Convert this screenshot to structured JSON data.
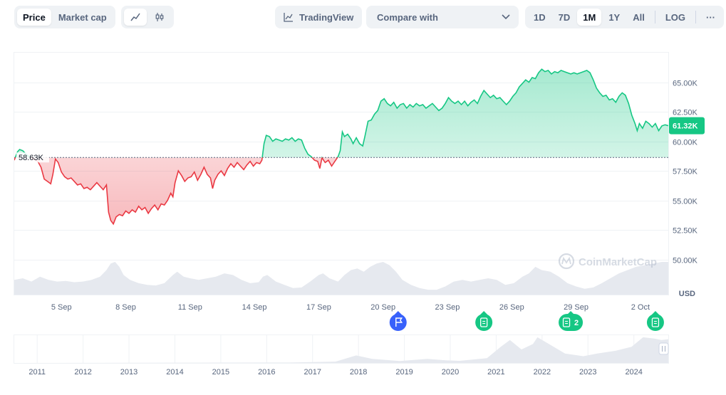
{
  "toolbar": {
    "view_tabs": [
      {
        "label": "Price",
        "active": true
      },
      {
        "label": "Market cap",
        "active": false
      }
    ],
    "chart_modes": [
      {
        "icon": "line-chart-icon",
        "active": true
      },
      {
        "icon": "candlestick-icon",
        "active": false
      }
    ],
    "tradingview_label": "TradingView",
    "compare_label": "Compare with",
    "ranges": [
      {
        "label": "1D",
        "active": false
      },
      {
        "label": "7D",
        "active": false
      },
      {
        "label": "1M",
        "active": true
      },
      {
        "label": "1Y",
        "active": false
      },
      {
        "label": "All",
        "active": false
      }
    ],
    "log_label": "LOG",
    "more_label": "···"
  },
  "colors": {
    "up": "#16c784",
    "down": "#ea3943",
    "muted": "#58667e",
    "grid": "#eff2f5"
  },
  "watermark": "CoinMarketCap",
  "chart_data": {
    "type": "area",
    "ylim": [
      47500,
      67500
    ],
    "yticks": [
      {
        "value": 50000,
        "label": "50.00K"
      },
      {
        "value": 52500,
        "label": "52.50K"
      },
      {
        "value": 55000,
        "label": "55.00K"
      },
      {
        "value": 57500,
        "label": "57.50K"
      },
      {
        "value": 60000,
        "label": "60.00K"
      },
      {
        "value": 62500,
        "label": "62.50K"
      },
      {
        "value": 65000,
        "label": "65.00K"
      }
    ],
    "xlim": [
      2.8,
      33.3
    ],
    "xticks": [
      {
        "value": 5,
        "label": "5 Sep"
      },
      {
        "value": 8,
        "label": "8 Sep"
      },
      {
        "value": 11,
        "label": "11 Sep"
      },
      {
        "value": 14,
        "label": "14 Sep"
      },
      {
        "value": 17,
        "label": "17 Sep"
      },
      {
        "value": 20,
        "label": "20 Sep"
      },
      {
        "value": 23,
        "label": "23 Sep"
      },
      {
        "value": 26,
        "label": "26 Sep"
      },
      {
        "value": 29,
        "label": "29 Sep"
      },
      {
        "value": 32,
        "label": "2 Oct"
      }
    ],
    "baseline": {
      "value": 58630,
      "label": "58.63K"
    },
    "current": {
      "value": 61320,
      "label": "61.32K"
    },
    "unit_label": "USD",
    "price_series": [
      [
        2.8,
        58400
      ],
      [
        2.95,
        59100
      ],
      [
        3.05,
        59300
      ],
      [
        3.2,
        59200
      ],
      [
        3.35,
        58900
      ],
      [
        3.5,
        58700
      ],
      [
        3.7,
        58500
      ],
      [
        3.9,
        58300
      ],
      [
        4.05,
        57800
      ],
      [
        4.2,
        56800
      ],
      [
        4.35,
        56600
      ],
      [
        4.5,
        56400
      ],
      [
        4.6,
        57200
      ],
      [
        4.72,
        58500
      ],
      [
        4.85,
        58200
      ],
      [
        5.0,
        57400
      ],
      [
        5.15,
        57000
      ],
      [
        5.3,
        56800
      ],
      [
        5.45,
        56900
      ],
      [
        5.6,
        56600
      ],
      [
        5.75,
        56300
      ],
      [
        5.9,
        56400
      ],
      [
        6.05,
        56000
      ],
      [
        6.2,
        56100
      ],
      [
        6.35,
        55900
      ],
      [
        6.5,
        56200
      ],
      [
        6.65,
        56500
      ],
      [
        6.8,
        56200
      ],
      [
        6.95,
        55900
      ],
      [
        7.1,
        56300
      ],
      [
        7.2,
        54000
      ],
      [
        7.3,
        53300
      ],
      [
        7.42,
        53000
      ],
      [
        7.55,
        53600
      ],
      [
        7.7,
        53800
      ],
      [
        7.85,
        53700
      ],
      [
        8.0,
        54100
      ],
      [
        8.15,
        53900
      ],
      [
        8.3,
        54200
      ],
      [
        8.45,
        54000
      ],
      [
        8.6,
        54500
      ],
      [
        8.75,
        54200
      ],
      [
        8.9,
        54400
      ],
      [
        9.05,
        53900
      ],
      [
        9.2,
        54300
      ],
      [
        9.35,
        54600
      ],
      [
        9.5,
        54200
      ],
      [
        9.65,
        54700
      ],
      [
        9.8,
        54600
      ],
      [
        9.95,
        55000
      ],
      [
        10.1,
        55600
      ],
      [
        10.2,
        55300
      ],
      [
        10.3,
        56500
      ],
      [
        10.45,
        57500
      ],
      [
        10.6,
        57100
      ],
      [
        10.75,
        56600
      ],
      [
        10.9,
        56900
      ],
      [
        11.05,
        57000
      ],
      [
        11.2,
        57400
      ],
      [
        11.35,
        56700
      ],
      [
        11.5,
        57200
      ],
      [
        11.65,
        57800
      ],
      [
        11.8,
        57200
      ],
      [
        11.95,
        56900
      ],
      [
        12.05,
        56000
      ],
      [
        12.15,
        56700
      ],
      [
        12.3,
        57200
      ],
      [
        12.45,
        57500
      ],
      [
        12.6,
        57100
      ],
      [
        12.75,
        57700
      ],
      [
        12.9,
        58100
      ],
      [
        13.05,
        57800
      ],
      [
        13.2,
        58200
      ],
      [
        13.35,
        57900
      ],
      [
        13.5,
        57600
      ],
      [
        13.65,
        58000
      ],
      [
        13.8,
        58300
      ],
      [
        13.95,
        57900
      ],
      [
        14.1,
        58200
      ],
      [
        14.25,
        58100
      ],
      [
        14.35,
        58400
      ],
      [
        14.45,
        59800
      ],
      [
        14.55,
        60500
      ],
      [
        14.7,
        60400
      ],
      [
        14.85,
        60000
      ],
      [
        15.0,
        60200
      ],
      [
        15.15,
        60100
      ],
      [
        15.3,
        60000
      ],
      [
        15.45,
        60200
      ],
      [
        15.6,
        60100
      ],
      [
        15.75,
        60300
      ],
      [
        15.9,
        60000
      ],
      [
        16.05,
        60200
      ],
      [
        16.2,
        60100
      ],
      [
        16.35,
        59400
      ],
      [
        16.5,
        58900
      ],
      [
        16.65,
        58700
      ],
      [
        16.8,
        58400
      ],
      [
        16.95,
        58300
      ],
      [
        17.05,
        57700
      ],
      [
        17.15,
        58600
      ],
      [
        17.3,
        58200
      ],
      [
        17.45,
        58400
      ],
      [
        17.6,
        57900
      ],
      [
        17.75,
        58300
      ],
      [
        17.9,
        58700
      ],
      [
        18.0,
        59200
      ],
      [
        18.1,
        60800
      ],
      [
        18.2,
        60400
      ],
      [
        18.35,
        60600
      ],
      [
        18.5,
        60200
      ],
      [
        18.6,
        59800
      ],
      [
        18.75,
        60300
      ],
      [
        18.9,
        59800
      ],
      [
        19.05,
        59600
      ],
      [
        19.15,
        60400
      ],
      [
        19.3,
        61700
      ],
      [
        19.45,
        61800
      ],
      [
        19.6,
        62300
      ],
      [
        19.75,
        62600
      ],
      [
        19.9,
        63400
      ],
      [
        20.05,
        63600
      ],
      [
        20.2,
        63200
      ],
      [
        20.35,
        63000
      ],
      [
        20.5,
        63300
      ],
      [
        20.65,
        62800
      ],
      [
        20.8,
        63100
      ],
      [
        20.95,
        63200
      ],
      [
        21.1,
        62800
      ],
      [
        21.25,
        63100
      ],
      [
        21.4,
        62900
      ],
      [
        21.55,
        63200
      ],
      [
        21.7,
        63000
      ],
      [
        21.85,
        63100
      ],
      [
        22.0,
        62800
      ],
      [
        22.15,
        63000
      ],
      [
        22.3,
        63200
      ],
      [
        22.45,
        62900
      ],
      [
        22.6,
        62600
      ],
      [
        22.75,
        62800
      ],
      [
        22.9,
        63200
      ],
      [
        23.05,
        63700
      ],
      [
        23.2,
        63400
      ],
      [
        23.35,
        63200
      ],
      [
        23.5,
        63400
      ],
      [
        23.65,
        63100
      ],
      [
        23.8,
        63400
      ],
      [
        23.95,
        63000
      ],
      [
        24.1,
        63300
      ],
      [
        24.25,
        63500
      ],
      [
        24.4,
        63200
      ],
      [
        24.55,
        63800
      ],
      [
        24.7,
        64300
      ],
      [
        24.85,
        64000
      ],
      [
        25.0,
        63700
      ],
      [
        25.15,
        63900
      ],
      [
        25.3,
        63600
      ],
      [
        25.45,
        63700
      ],
      [
        25.6,
        63400
      ],
      [
        25.75,
        63100
      ],
      [
        25.9,
        63400
      ],
      [
        26.05,
        63800
      ],
      [
        26.2,
        64100
      ],
      [
        26.35,
        64600
      ],
      [
        26.5,
        64900
      ],
      [
        26.65,
        65200
      ],
      [
        26.8,
        65000
      ],
      [
        26.95,
        65400
      ],
      [
        27.1,
        65300
      ],
      [
        27.25,
        65800
      ],
      [
        27.4,
        66100
      ],
      [
        27.55,
        65900
      ],
      [
        27.7,
        66000
      ],
      [
        27.85,
        65700
      ],
      [
        28.0,
        65900
      ],
      [
        28.15,
        65800
      ],
      [
        28.3,
        66000
      ],
      [
        28.45,
        65900
      ],
      [
        28.6,
        65800
      ],
      [
        28.75,
        65700
      ],
      [
        28.9,
        65800
      ],
      [
        29.05,
        65700
      ],
      [
        29.2,
        65800
      ],
      [
        29.35,
        65900
      ],
      [
        29.5,
        66000
      ],
      [
        29.65,
        65800
      ],
      [
        29.8,
        65200
      ],
      [
        29.95,
        64500
      ],
      [
        30.1,
        64100
      ],
      [
        30.25,
        63800
      ],
      [
        30.4,
        63900
      ],
      [
        30.55,
        63500
      ],
      [
        30.7,
        63600
      ],
      [
        30.85,
        63300
      ],
      [
        31.0,
        63800
      ],
      [
        31.15,
        64100
      ],
      [
        31.3,
        63900
      ],
      [
        31.45,
        63200
      ],
      [
        31.6,
        62200
      ],
      [
        31.75,
        61500
      ],
      [
        31.85,
        60900
      ],
      [
        31.95,
        61500
      ],
      [
        32.1,
        61100
      ],
      [
        32.25,
        61700
      ],
      [
        32.4,
        61500
      ],
      [
        32.55,
        61200
      ],
      [
        32.7,
        61500
      ],
      [
        32.85,
        60900
      ],
      [
        33.0,
        61300
      ],
      [
        33.15,
        61400
      ],
      [
        33.3,
        61320
      ]
    ],
    "volume_series": [
      [
        2.8,
        0.45
      ],
      [
        3.2,
        0.5
      ],
      [
        3.6,
        0.4
      ],
      [
        4.0,
        0.55
      ],
      [
        4.4,
        0.45
      ],
      [
        4.8,
        0.4
      ],
      [
        5.2,
        0.42
      ],
      [
        5.6,
        0.38
      ],
      [
        6.0,
        0.4
      ],
      [
        6.4,
        0.45
      ],
      [
        6.8,
        0.55
      ],
      [
        7.1,
        0.75
      ],
      [
        7.3,
        0.95
      ],
      [
        7.5,
        1.0
      ],
      [
        7.7,
        0.85
      ],
      [
        7.9,
        0.6
      ],
      [
        8.2,
        0.45
      ],
      [
        8.6,
        0.35
      ],
      [
        9.0,
        0.3
      ],
      [
        9.4,
        0.28
      ],
      [
        9.8,
        0.35
      ],
      [
        10.2,
        0.6
      ],
      [
        10.4,
        0.7
      ],
      [
        10.7,
        0.55
      ],
      [
        11.0,
        0.5
      ],
      [
        11.4,
        0.45
      ],
      [
        11.8,
        0.5
      ],
      [
        12.2,
        0.55
      ],
      [
        12.6,
        0.65
      ],
      [
        13.0,
        0.6
      ],
      [
        13.4,
        0.45
      ],
      [
        13.8,
        0.35
      ],
      [
        14.2,
        0.38
      ],
      [
        14.4,
        0.55
      ],
      [
        14.6,
        0.6
      ],
      [
        15.0,
        0.4
      ],
      [
        15.4,
        0.3
      ],
      [
        15.8,
        0.2
      ],
      [
        16.2,
        0.22
      ],
      [
        16.6,
        0.4
      ],
      [
        17.0,
        0.6
      ],
      [
        17.2,
        0.65
      ],
      [
        17.5,
        0.5
      ],
      [
        17.9,
        0.4
      ],
      [
        18.2,
        0.6
      ],
      [
        18.5,
        0.75
      ],
      [
        18.8,
        0.8
      ],
      [
        19.1,
        0.7
      ],
      [
        19.4,
        0.85
      ],
      [
        19.7,
        0.95
      ],
      [
        20.0,
        1.0
      ],
      [
        20.3,
        0.9
      ],
      [
        20.6,
        0.7
      ],
      [
        20.9,
        0.45
      ],
      [
        21.3,
        0.3
      ],
      [
        21.7,
        0.2
      ],
      [
        22.1,
        0.15
      ],
      [
        22.5,
        0.15
      ],
      [
        22.9,
        0.25
      ],
      [
        23.3,
        0.4
      ],
      [
        23.7,
        0.45
      ],
      [
        24.1,
        0.4
      ],
      [
        24.5,
        0.45
      ],
      [
        24.9,
        0.5
      ],
      [
        25.3,
        0.45
      ],
      [
        25.7,
        0.3
      ],
      [
        26.1,
        0.35
      ],
      [
        26.5,
        0.55
      ],
      [
        26.8,
        0.65
      ],
      [
        27.1,
        0.85
      ],
      [
        27.4,
        0.75
      ],
      [
        27.8,
        0.7
      ],
      [
        28.2,
        0.55
      ],
      [
        28.6,
        0.35
      ],
      [
        29.0,
        0.25
      ],
      [
        29.4,
        0.18
      ],
      [
        29.8,
        0.22
      ],
      [
        30.2,
        0.35
      ],
      [
        30.6,
        0.5
      ],
      [
        31.0,
        0.65
      ],
      [
        31.4,
        0.75
      ],
      [
        31.8,
        0.85
      ],
      [
        32.2,
        0.9
      ],
      [
        32.6,
        0.95
      ],
      [
        33.0,
        1.0
      ],
      [
        33.3,
        1.0
      ]
    ],
    "events": [
      {
        "x": 20.7,
        "icon": "flag-icon",
        "label": "",
        "color": "#3861fb"
      },
      {
        "x": 24.7,
        "icon": "document-icon",
        "label": "",
        "color": "#16c784"
      },
      {
        "x": 28.75,
        "icon": "document-icon",
        "label": "2",
        "color": "#16c784"
      },
      {
        "x": 32.7,
        "icon": "document-icon",
        "label": "",
        "color": "#16c784"
      }
    ],
    "navigator": {
      "xlim": [
        2010.5,
        2024.75
      ],
      "year_labels": [
        "2011",
        "2012",
        "2013",
        "2014",
        "2015",
        "2016",
        "2017",
        "2018",
        "2019",
        "2020",
        "2021",
        "2022",
        "2023",
        "2024"
      ],
      "series": [
        [
          2010.5,
          0.0
        ],
        [
          2013.0,
          0.005
        ],
        [
          2014.0,
          0.01
        ],
        [
          2016.5,
          0.015
        ],
        [
          2017.5,
          0.05
        ],
        [
          2017.95,
          0.28
        ],
        [
          2018.3,
          0.15
        ],
        [
          2018.9,
          0.07
        ],
        [
          2019.5,
          0.15
        ],
        [
          2019.9,
          0.1
        ],
        [
          2020.2,
          0.08
        ],
        [
          2020.8,
          0.18
        ],
        [
          2021.1,
          0.6
        ],
        [
          2021.3,
          0.85
        ],
        [
          2021.55,
          0.5
        ],
        [
          2021.8,
          0.7
        ],
        [
          2021.9,
          0.95
        ],
        [
          2022.2,
          0.65
        ],
        [
          2022.5,
          0.35
        ],
        [
          2022.9,
          0.25
        ],
        [
          2023.2,
          0.35
        ],
        [
          2023.6,
          0.45
        ],
        [
          2023.95,
          0.6
        ],
        [
          2024.2,
          0.95
        ],
        [
          2024.45,
          0.9
        ],
        [
          2024.6,
          0.85
        ],
        [
          2024.75,
          0.88
        ]
      ]
    }
  }
}
